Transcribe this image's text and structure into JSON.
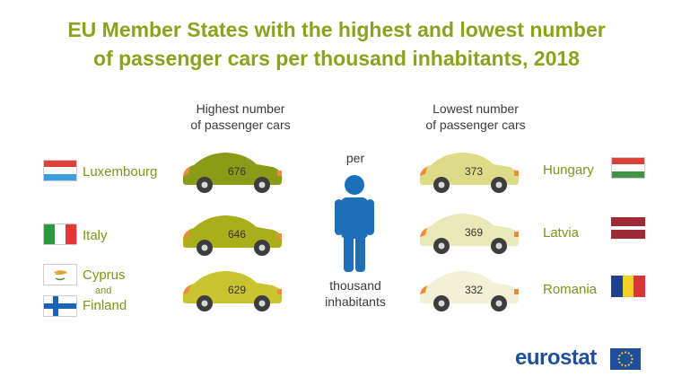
{
  "title": {
    "line1": "EU Member States with the highest and lowest number",
    "line2": "of passenger cars per thousand inhabitants, 2018"
  },
  "headers": {
    "highest_line1": "Highest number",
    "highest_line2": "of passenger cars",
    "lowest_line1": "Lowest number",
    "lowest_line2": "of passenger cars"
  },
  "middle": {
    "per": "per",
    "thousand": "thousand",
    "inhabitants": "inhabitants"
  },
  "countries": {
    "luxembourg": "Luxembourg",
    "italy": "Italy",
    "cyprus": "Cyprus",
    "and": "and",
    "finland": "Finland",
    "hungary": "Hungary",
    "latvia": "Latvia",
    "romania": "Romania"
  },
  "logo": "eurostat",
  "colors": {
    "title": "#8aa21c",
    "highest_cars": [
      "#8a9b17",
      "#a9ae1a",
      "#c9c32f"
    ],
    "lowest_cars": [
      "#dedb88",
      "#e9e8b7",
      "#f2f1d6"
    ],
    "person": "#1d6fb8"
  },
  "chart_data": {
    "type": "table",
    "title": "EU Member States with the highest and lowest number of passenger cars per thousand inhabitants, 2018",
    "highest": [
      {
        "country": "Luxembourg",
        "value": 676
      },
      {
        "country": "Italy",
        "value": 646
      },
      {
        "country": "Cyprus and Finland",
        "value": 629
      }
    ],
    "lowest": [
      {
        "country": "Hungary",
        "value": 373
      },
      {
        "country": "Latvia",
        "value": 369
      },
      {
        "country": "Romania",
        "value": 332
      }
    ]
  }
}
